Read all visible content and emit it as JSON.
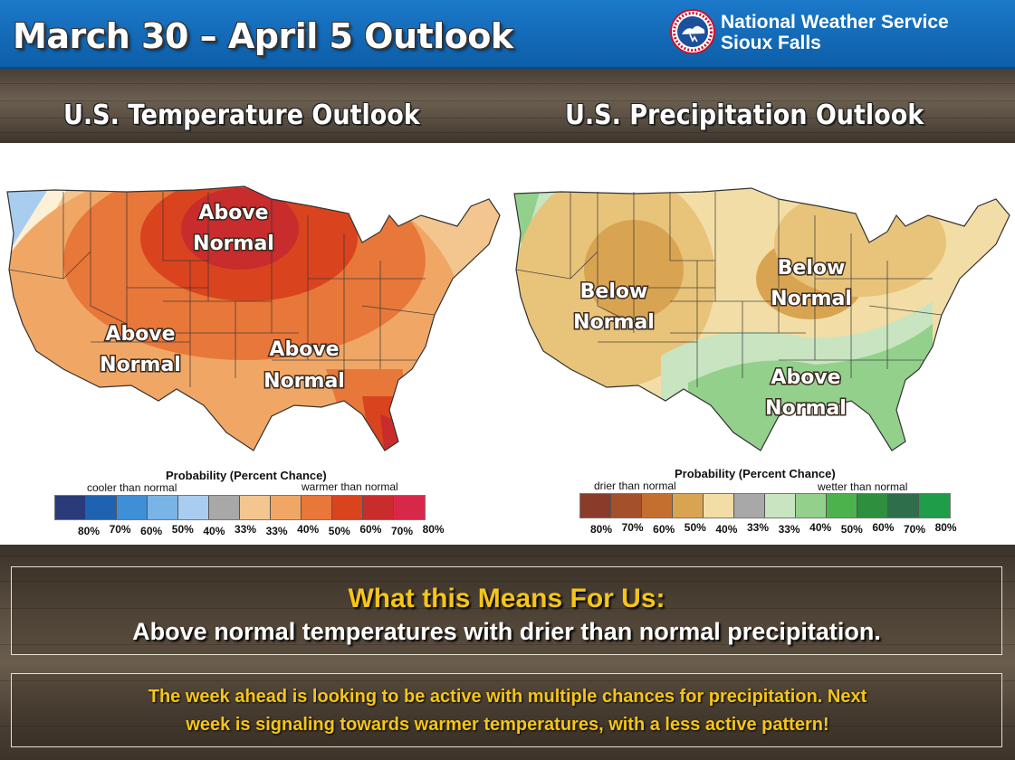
{
  "header": {
    "title": "March 30 – April 5 Outlook",
    "org_line1": "National Weather Service",
    "org_line2": "Sioux Falls",
    "logo_icon": "nws-logo"
  },
  "temperature": {
    "heading": "U.S. Temperature Outlook",
    "labels": [
      {
        "line1": "Above",
        "line2": "Normal"
      },
      {
        "line1": "Above",
        "line2": "Normal"
      },
      {
        "line1": "Above",
        "line2": "Normal"
      }
    ],
    "legend": {
      "title": "Probability (Percent Chance)",
      "left_label": "cooler than normal",
      "right_label": "warmer than normal",
      "colors": [
        "#2b3a78",
        "#1f63b0",
        "#3f8fd6",
        "#7ab4e6",
        "#a9cdee",
        "#a8a8a8",
        "#f3c58f",
        "#f0a766",
        "#e8773a",
        "#d9441f",
        "#c82c2c",
        "#d8284a"
      ],
      "ticks": [
        "80%",
        "70%",
        "60%",
        "50%",
        "40%",
        "33%",
        "33%",
        "40%",
        "50%",
        "60%",
        "70%",
        "80%"
      ]
    }
  },
  "precipitation": {
    "heading": "U.S. Precipitation Outlook",
    "labels": [
      {
        "line1": "Below",
        "line2": "Normal"
      },
      {
        "line1": "Below",
        "line2": "Normal"
      },
      {
        "line1": "Above",
        "line2": "Normal"
      }
    ],
    "legend": {
      "title": "Probability (Percent Chance)",
      "left_label": "drier than normal",
      "right_label": "wetter  than normal",
      "colors": [
        "#8a3b2a",
        "#a4502a",
        "#c46f30",
        "#d9a452",
        "#f2dda6",
        "#a8a8a8",
        "#c8e4c0",
        "#93d08c",
        "#4cb34c",
        "#2e8f3e",
        "#2e6e4a",
        "#1f9d48"
      ],
      "ticks": [
        "80%",
        "70%",
        "60%",
        "50%",
        "40%",
        "33%",
        "33%",
        "40%",
        "50%",
        "60%",
        "70%",
        "80%"
      ]
    }
  },
  "summary": {
    "title": "What this Means For Us:",
    "body": "Above normal temperatures with drier than normal precipitation."
  },
  "week": {
    "line1": "The week ahead is looking to be active with multiple chances for precipitation. Next",
    "line2": "week is signaling towards warmer temperatures, with a less active pattern!"
  }
}
